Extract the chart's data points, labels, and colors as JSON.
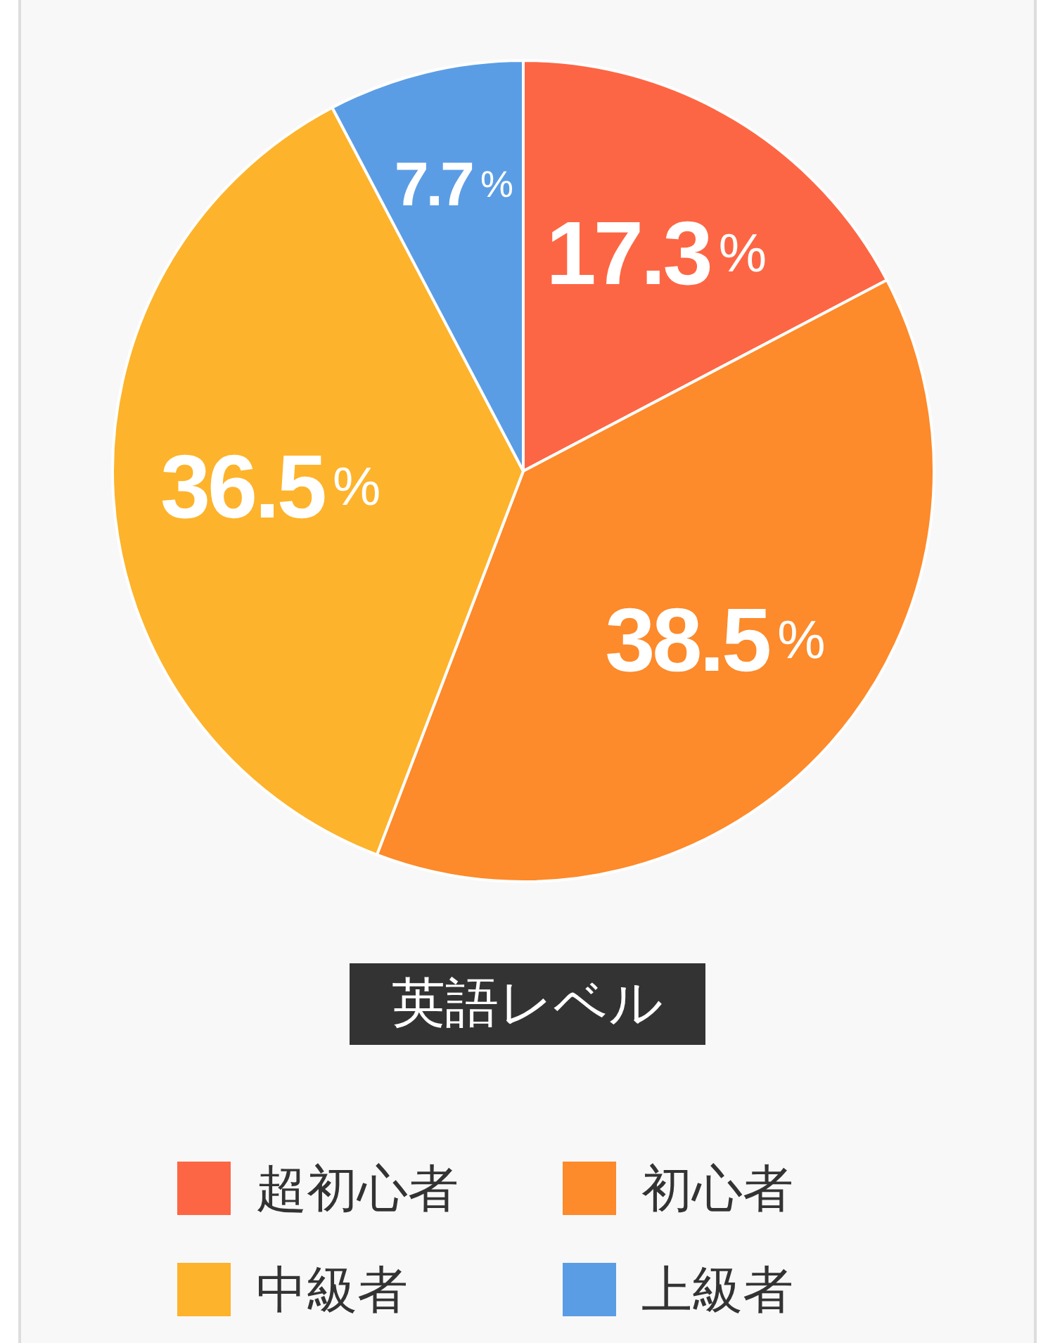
{
  "chart_data": {
    "type": "pie",
    "title": "英語レベル",
    "categories": [
      "超初心者",
      "初心者",
      "中級者",
      "上級者"
    ],
    "values": [
      17.3,
      38.5,
      36.5,
      7.7
    ],
    "colors": [
      "#fd6644",
      "#fd8a2b",
      "#fdb32b",
      "#5b9de5"
    ],
    "value_labels": [
      "17.3%",
      "38.5%",
      "36.5%",
      "7.7%"
    ],
    "legend": "bottom"
  }
}
